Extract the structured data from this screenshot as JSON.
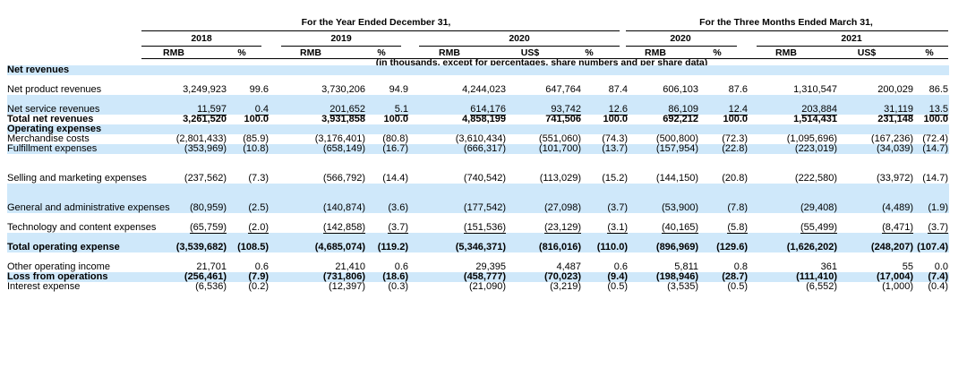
{
  "header": {
    "period_full": "For the Year Ended December 31,",
    "period_quarter": "For the Three Months Ended March 31,",
    "years": {
      "y2018": "2018",
      "y2019": "2019",
      "y2020": "2020",
      "q2020": "2020",
      "q2021": "2021"
    },
    "units": {
      "rmb": "RMB",
      "pct": "%",
      "usd": "US$"
    },
    "note": "(in thousands, except for percentages, share numbers and per share data)"
  },
  "rows": [
    {
      "label": "Net revenues",
      "values": []
    },
    {
      "label": "Net product revenues",
      "values": [
        "3,249,923",
        "99.6",
        "3,730,206",
        "94.9",
        "4,244,023",
        "647,764",
        "87.4",
        "606,103",
        "87.6",
        "1,310,547",
        "200,029",
        "86.5"
      ]
    },
    {
      "label": "Net service revenues",
      "values": [
        "11,597",
        "0.4",
        "201,652",
        "5.1",
        "614,176",
        "93,742",
        "12.6",
        "86,109",
        "12.4",
        "203,884",
        "31,119",
        "13.5"
      ]
    },
    {
      "label": "Total net revenues",
      "values": [
        "3,261,520",
        "100.0",
        "3,931,858",
        "100.0",
        "4,858,199",
        "741,506",
        "100.0",
        "692,212",
        "100.0",
        "1,514,431",
        "231,148",
        "100.0"
      ]
    },
    {
      "label": "Operating expenses",
      "values": []
    },
    {
      "label": "Merchandise costs",
      "values": [
        "(2,801,433)",
        "(85.9)",
        "(3,176,401)",
        "(80.8)",
        "(3,610,434)",
        "(551,060)",
        "(74.3)",
        "(500,800)",
        "(72.3)",
        "(1,095,696)",
        "(167,236)",
        "(72.4)"
      ]
    },
    {
      "label": "Fulfillment expenses",
      "values": [
        "(353,969)",
        "(10.8)",
        "(658,149)",
        "(16.7)",
        "(666,317)",
        "(101,700)",
        "(13.7)",
        "(157,954)",
        "(22.8)",
        "(223,019)",
        "(34,039)",
        "(14.7)"
      ]
    },
    {
      "label": "Selling and marketing expenses",
      "values": [
        "(237,562)",
        "(7.3)",
        "(566,792)",
        "(14.4)",
        "(740,542)",
        "(113,029)",
        "(15.2)",
        "(144,150)",
        "(20.8)",
        "(222,580)",
        "(33,972)",
        "(14.7)"
      ]
    },
    {
      "label": "General and administrative expenses",
      "values": [
        "(80,959)",
        "(2.5)",
        "(140,874)",
        "(3.6)",
        "(177,542)",
        "(27,098)",
        "(3.7)",
        "(53,900)",
        "(7.8)",
        "(29,408)",
        "(4,489)",
        "(1.9)"
      ]
    },
    {
      "label": "Technology and content expenses",
      "values": [
        "(65,759)",
        "(2.0)",
        "(142,858)",
        "(3.7)",
        "(151,536)",
        "(23,129)",
        "(3.1)",
        "(40,165)",
        "(5.8)",
        "(55,499)",
        "(8,471)",
        "(3.7)"
      ]
    },
    {
      "label": "Total operating expense",
      "values": [
        "(3,539,682)",
        "(108.5)",
        "(4,685,074)",
        "(119.2)",
        "(5,346,371)",
        "(816,016)",
        "(110.0)",
        "(896,969)",
        "(129.6)",
        "(1,626,202)",
        "(248,207)",
        "(107.4)"
      ]
    },
    {
      "label": "Other operating income",
      "values": [
        "21,701",
        "0.6",
        "21,410",
        "0.6",
        "29,395",
        "4,487",
        "0.6",
        "5,811",
        "0.8",
        "361",
        "55",
        "0.0"
      ]
    },
    {
      "label": "Loss from operations",
      "values": [
        "(256,461)",
        "(7.9)",
        "(731,806)",
        "(18.6)",
        "(458,777)",
        "(70,023)",
        "(9.4)",
        "(198,946)",
        "(28.7)",
        "(111,410)",
        "(17,004)",
        "(7.4)"
      ]
    },
    {
      "label": "Interest expense",
      "values": [
        "(6,536)",
        "(0.2)",
        "(12,397)",
        "(0.3)",
        "(21,090)",
        "(3,219)",
        "(0.5)",
        "(3,535)",
        "(0.5)",
        "(6,552)",
        "(1,000)",
        "(0.4)"
      ]
    }
  ]
}
